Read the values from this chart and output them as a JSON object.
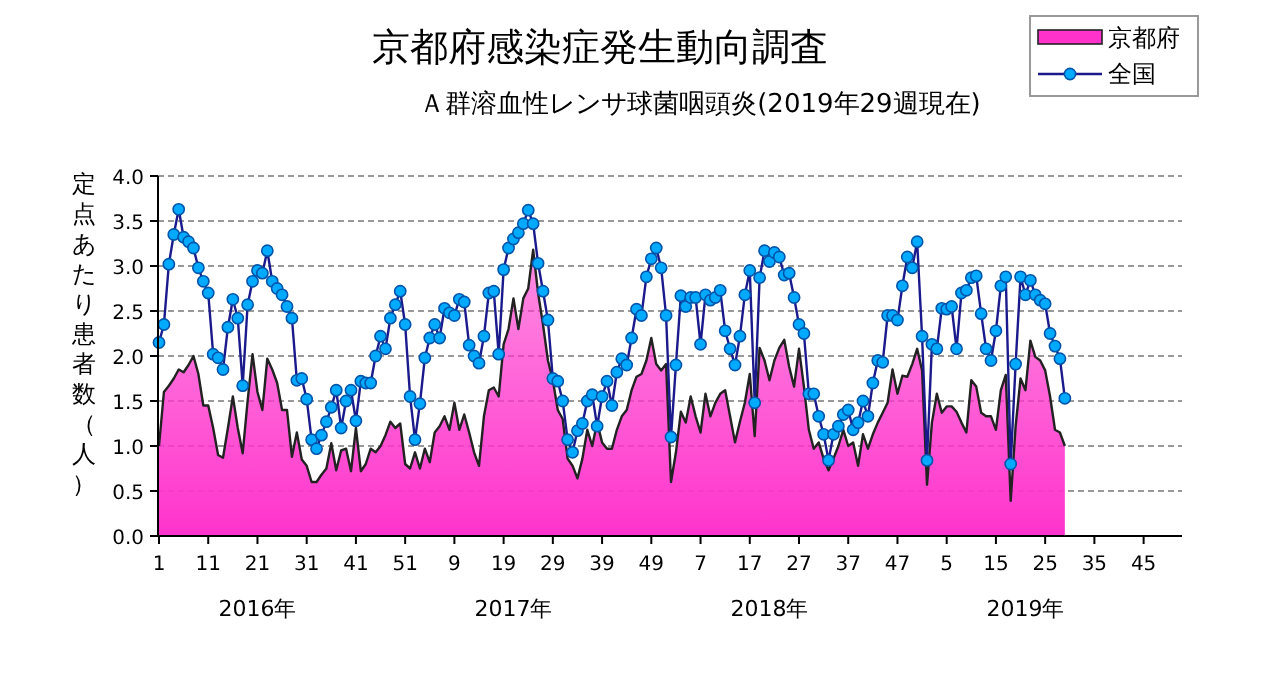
{
  "chart_data": {
    "type": "line",
    "title": "京都府感染症発生動向調査",
    "subtitle": "Ａ群溶血性レンサ球菌咽頭炎(2019年29週現在)",
    "ylabel": "定点あたり患者数（人）",
    "categories": [
      "1",
      null,
      null,
      null,
      null,
      null,
      null,
      null,
      null,
      null,
      "11",
      null,
      null,
      null,
      null,
      null,
      null,
      null,
      null,
      null,
      "21",
      null,
      null,
      null,
      null,
      null,
      null,
      null,
      null,
      null,
      "31",
      null,
      null,
      null,
      null,
      null,
      null,
      null,
      null,
      null,
      "41",
      null,
      null,
      null,
      null,
      null,
      null,
      null,
      null,
      null,
      "51",
      null,
      null,
      null,
      null,
      null,
      null,
      null,
      null,
      null,
      "9",
      null,
      null,
      null,
      null,
      null,
      null,
      null,
      null,
      null,
      "19",
      null,
      null,
      null,
      null,
      null,
      null,
      null,
      null,
      null,
      "29",
      null,
      null,
      null,
      null,
      null,
      null,
      null,
      null,
      null,
      "39",
      null,
      null,
      null,
      null,
      null,
      null,
      null,
      null,
      null,
      "49",
      null,
      null,
      null,
      null,
      null,
      null,
      null,
      null,
      null,
      "7",
      null,
      null,
      null,
      null,
      null,
      null,
      null,
      null,
      null,
      "17",
      null,
      null,
      null,
      null,
      null,
      null,
      null,
      null,
      null,
      "27",
      null,
      null,
      null,
      null,
      null,
      null,
      null,
      null,
      null,
      "37",
      null,
      null,
      null,
      null,
      null,
      null,
      null,
      null,
      null,
      "47",
      null,
      null,
      null,
      null,
      null,
      null,
      null,
      null,
      null,
      "5",
      null,
      null,
      null,
      null,
      null,
      null,
      null,
      null,
      null,
      "15",
      null,
      null,
      null,
      null,
      null,
      null,
      null,
      null,
      null,
      "25",
      null,
      null,
      null,
      null,
      null,
      null,
      null,
      null,
      null,
      "35",
      null,
      null,
      null,
      null,
      null,
      null,
      null,
      null,
      null,
      "45",
      null,
      null,
      null,
      null,
      null,
      null,
      null
    ],
    "series": [
      {
        "name": "京都府",
        "type": "area",
        "color": "#ff33cc",
        "values": [
          1.0,
          1.6,
          1.67,
          1.75,
          1.85,
          1.82,
          1.9,
          2.0,
          1.8,
          1.45,
          1.45,
          1.2,
          0.9,
          0.87,
          1.2,
          1.55,
          1.2,
          0.92,
          1.5,
          2.02,
          1.6,
          1.4,
          1.97,
          1.85,
          1.7,
          1.4,
          1.4,
          0.88,
          1.15,
          0.85,
          0.78,
          0.6,
          0.6,
          0.68,
          0.75,
          1.03,
          0.73,
          0.95,
          0.97,
          0.72,
          1.2,
          0.72,
          0.8,
          0.97,
          0.93,
          1.0,
          1.12,
          1.27,
          1.2,
          1.25,
          0.8,
          0.75,
          0.93,
          0.75,
          0.97,
          0.82,
          1.15,
          1.22,
          1.33,
          1.18,
          1.48,
          1.18,
          1.35,
          1.15,
          0.93,
          0.78,
          1.33,
          1.62,
          1.65,
          1.55,
          2.13,
          2.3,
          2.64,
          2.3,
          2.64,
          2.75,
          3.18,
          2.7,
          2.35,
          1.95,
          1.73,
          1.4,
          1.3,
          0.86,
          0.78,
          0.64,
          0.86,
          1.18,
          1.0,
          1.26,
          1.04,
          0.97,
          0.97,
          1.18,
          1.33,
          1.4,
          1.62,
          1.77,
          1.8,
          1.95,
          2.2,
          1.91,
          1.84,
          1.91,
          0.6,
          0.93,
          1.38,
          1.26,
          1.55,
          1.33,
          1.15,
          1.58,
          1.33,
          1.48,
          1.58,
          1.62,
          1.33,
          1.04,
          1.27,
          1.48,
          1.8,
          1.11,
          2.09,
          1.95,
          1.73,
          1.95,
          2.09,
          2.18,
          1.88,
          1.66,
          2.08,
          1.66,
          1.18,
          0.97,
          1.04,
          0.86,
          0.73,
          0.86,
          1.0,
          1.18,
          1.0,
          1.04,
          0.78,
          1.13,
          0.97,
          1.13,
          1.26,
          1.37,
          1.48,
          1.85,
          1.58,
          1.78,
          1.77,
          1.91,
          2.08,
          1.84,
          0.57,
          1.26,
          1.58,
          1.37,
          1.44,
          1.44,
          1.38,
          1.26,
          1.15,
          1.73,
          1.66,
          1.37,
          1.33,
          1.33,
          1.18,
          1.62,
          1.79,
          0.39,
          1.22,
          1.75,
          1.62,
          2.17,
          1.99,
          1.95,
          1.84,
          1.55,
          1.18,
          1.15,
          1.0,
          null,
          null,
          null,
          null,
          null,
          null,
          null,
          null,
          null,
          null,
          null,
          null,
          null,
          null,
          null,
          null,
          null,
          null,
          null,
          null,
          null,
          null,
          null
        ]
      },
      {
        "name": "全国",
        "marker": "circle",
        "color": "#00aaff",
        "values": [
          2.15,
          2.35,
          3.02,
          3.35,
          3.63,
          3.32,
          3.27,
          3.2,
          2.98,
          2.83,
          2.7,
          2.02,
          1.98,
          1.85,
          2.32,
          2.63,
          2.42,
          1.67,
          2.57,
          2.83,
          2.95,
          2.92,
          3.17,
          2.83,
          2.75,
          2.68,
          2.55,
          2.42,
          1.73,
          1.75,
          1.52,
          1.07,
          0.97,
          1.12,
          1.27,
          1.43,
          1.62,
          1.2,
          1.5,
          1.62,
          1.28,
          1.72,
          1.7,
          1.7,
          2.0,
          2.22,
          2.08,
          2.42,
          2.57,
          2.72,
          2.35,
          1.55,
          1.07,
          1.47,
          1.98,
          2.2,
          2.35,
          2.2,
          2.53,
          2.48,
          2.45,
          2.63,
          2.6,
          2.12,
          2.0,
          1.92,
          2.22,
          2.7,
          2.72,
          2.02,
          2.96,
          3.2,
          3.3,
          3.37,
          3.47,
          3.62,
          3.47,
          3.03,
          2.72,
          2.4,
          1.75,
          1.72,
          1.5,
          1.07,
          0.93,
          1.17,
          1.25,
          1.5,
          1.57,
          1.22,
          1.55,
          1.72,
          1.45,
          1.82,
          1.97,
          1.9,
          2.2,
          2.52,
          2.45,
          2.88,
          3.08,
          3.2,
          2.98,
          2.45,
          1.1,
          1.9,
          2.67,
          2.55,
          2.65,
          2.65,
          2.13,
          2.68,
          2.62,
          2.65,
          2.73,
          2.28,
          2.08,
          1.9,
          2.22,
          2.68,
          2.95,
          1.48,
          2.87,
          3.17,
          3.05,
          3.15,
          3.1,
          2.9,
          2.92,
          2.65,
          2.35,
          2.25,
          1.58,
          1.58,
          1.33,
          1.13,
          0.84,
          1.13,
          1.22,
          1.35,
          1.4,
          1.18,
          1.26,
          1.5,
          1.33,
          1.7,
          1.95,
          1.93,
          2.45,
          2.45,
          2.4,
          2.78,
          3.1,
          2.98,
          3.27,
          2.22,
          0.84,
          2.13,
          2.08,
          2.53,
          2.52,
          2.55,
          2.08,
          2.7,
          2.73,
          2.87,
          2.89,
          2.47,
          2.08,
          1.95,
          2.28,
          2.78,
          2.88,
          0.8,
          1.91,
          2.88,
          2.68,
          2.84,
          2.68,
          2.62,
          2.58,
          2.25,
          2.11,
          1.97,
          1.53,
          null,
          null,
          null,
          null,
          null,
          null,
          null,
          null,
          null,
          null,
          null,
          null,
          null,
          null,
          null,
          null,
          null,
          null,
          null,
          null,
          null,
          null,
          null
        ]
      }
    ],
    "ylim": [
      0,
      4
    ],
    "yticks": [
      {
        "value": 0,
        "label": "0.0"
      },
      {
        "value": 0.5,
        "label": "0.5"
      },
      {
        "value": 1,
        "label": "1.0"
      },
      {
        "value": 1.5,
        "label": "1.5"
      },
      {
        "value": 2,
        "label": "2.0"
      },
      {
        "value": 2.5,
        "label": "2.5"
      },
      {
        "value": 3,
        "label": "3.0"
      },
      {
        "value": 3.5,
        "label": "3.5"
      },
      {
        "value": 4,
        "label": "4.0"
      }
    ],
    "grid": "y",
    "legend": "top right",
    "annotations": [
      "2016年",
      "2017年",
      "2018年",
      "2019年"
    ]
  }
}
